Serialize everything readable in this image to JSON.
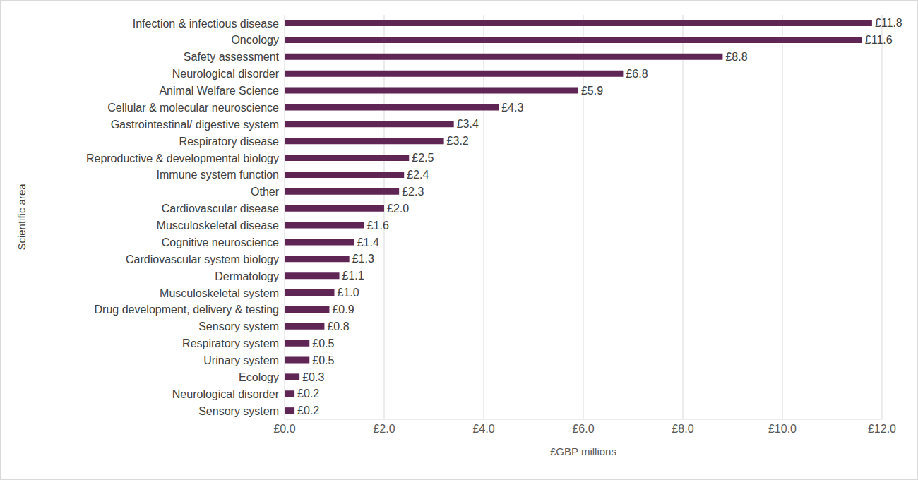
{
  "chart_data": {
    "type": "bar",
    "orientation": "horizontal",
    "x_label": "£GBP millions",
    "y_label": "Scientific area",
    "categories": [
      "Infection & infectious disease",
      "Oncology",
      "Safety assessment",
      "Neurological disorder",
      "Animal Welfare Science",
      "Cellular & molecular neuroscience",
      "Gastrointestinal/ digestive system",
      "Respiratory disease",
      "Reproductive & developmental biology",
      "Immune system function",
      "Other",
      "Cardiovascular disease",
      "Musculoskeletal disease",
      "Cognitive neuroscience",
      "Cardiovascular system biology",
      "Dermatology",
      "Musculoskeletal system",
      "Drug development, delivery & testing",
      "Sensory system",
      "Respiratory system",
      "Urinary system",
      "Ecology",
      "Neurological disorder",
      "Sensory system"
    ],
    "values": [
      11.8,
      11.6,
      8.8,
      6.8,
      5.9,
      4.3,
      3.4,
      3.2,
      2.5,
      2.4,
      2.3,
      2.0,
      1.6,
      1.4,
      1.3,
      1.1,
      1.0,
      0.9,
      0.8,
      0.5,
      0.5,
      0.3,
      0.2,
      0.2
    ],
    "value_labels": [
      "£11.8",
      "£11.6",
      "£8.8",
      "£6.8",
      "£5.9",
      "£4.3",
      "£3.4",
      "£3.2",
      "£2.5",
      "£2.4",
      "£2.3",
      "£2.0",
      "£1.6",
      "£1.4",
      "£1.3",
      "£1.1",
      "£1.0",
      "£0.9",
      "£0.8",
      "£0.5",
      "£0.5",
      "£0.3",
      "£0.2",
      "£0.2"
    ],
    "color": "#5f2555",
    "xlim": [
      0,
      12
    ],
    "xticks": [
      {
        "value": 0,
        "label": "£0.0"
      },
      {
        "value": 2,
        "label": "£2.0"
      },
      {
        "value": 4,
        "label": "£4.0"
      },
      {
        "value": 6,
        "label": "£6.0"
      },
      {
        "value": 8,
        "label": "£8.0"
      },
      {
        "value": 10,
        "label": "£10.0"
      },
      {
        "value": 12,
        "label": "£12.0"
      }
    ],
    "grid": true,
    "data_labels": true
  }
}
